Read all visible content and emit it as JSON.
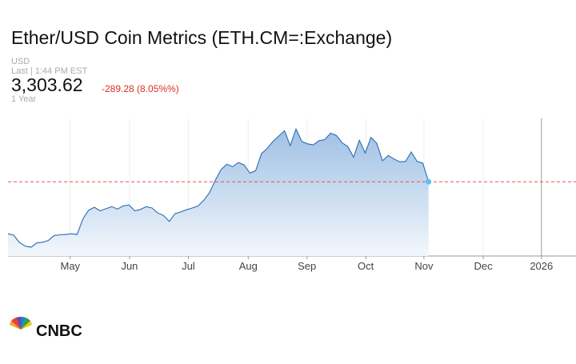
{
  "header": {
    "title": "Ether/USD Coin Metrics (ETH.CM=:Exchange)",
    "currency": "USD",
    "last": "Last | 1:44 PM EST",
    "price": "3,303.62",
    "change": "-289.28 (8.05%%)",
    "range": "1 Year"
  },
  "chart_data": {
    "type": "line",
    "color": "#2b6cb0",
    "area": true,
    "grid": true,
    "values": [
      1830,
      1790,
      1580,
      1480,
      1450,
      1570,
      1590,
      1640,
      1780,
      1800,
      1810,
      1830,
      1810,
      2250,
      2500,
      2580,
      2480,
      2540,
      2600,
      2530,
      2620,
      2650,
      2480,
      2520,
      2600,
      2560,
      2420,
      2350,
      2180,
      2400,
      2450,
      2510,
      2560,
      2620,
      2780,
      3000,
      3350,
      3650,
      3800,
      3730,
      3850,
      3780,
      3550,
      3620,
      4100,
      4250,
      4450,
      4600,
      4750,
      4330,
      4800,
      4450,
      4380,
      4350,
      4470,
      4500,
      4680,
      4620,
      4410,
      4300,
      4000,
      4480,
      4120,
      4560,
      4400,
      3900,
      4050,
      3950,
      3870,
      3880,
      4150,
      3880,
      3830,
      3303.62
    ],
    "xlim": [
      0,
      98.6
    ],
    "ylim": [
      1200,
      5100
    ],
    "xticks": [
      {
        "value": 10.8,
        "label": "May"
      },
      {
        "value": 21.1,
        "label": "Jun"
      },
      {
        "value": 31.3,
        "label": "Jul"
      },
      {
        "value": 41.7,
        "label": "Aug"
      },
      {
        "value": 51.9,
        "label": "Sep"
      },
      {
        "value": 62.1,
        "label": "Oct"
      },
      {
        "value": 72.2,
        "label": "Nov"
      },
      {
        "value": 82.5,
        "label": "Dec"
      },
      {
        "value": 92.6,
        "label": "2026"
      }
    ]
  },
  "logo": "CNBC"
}
